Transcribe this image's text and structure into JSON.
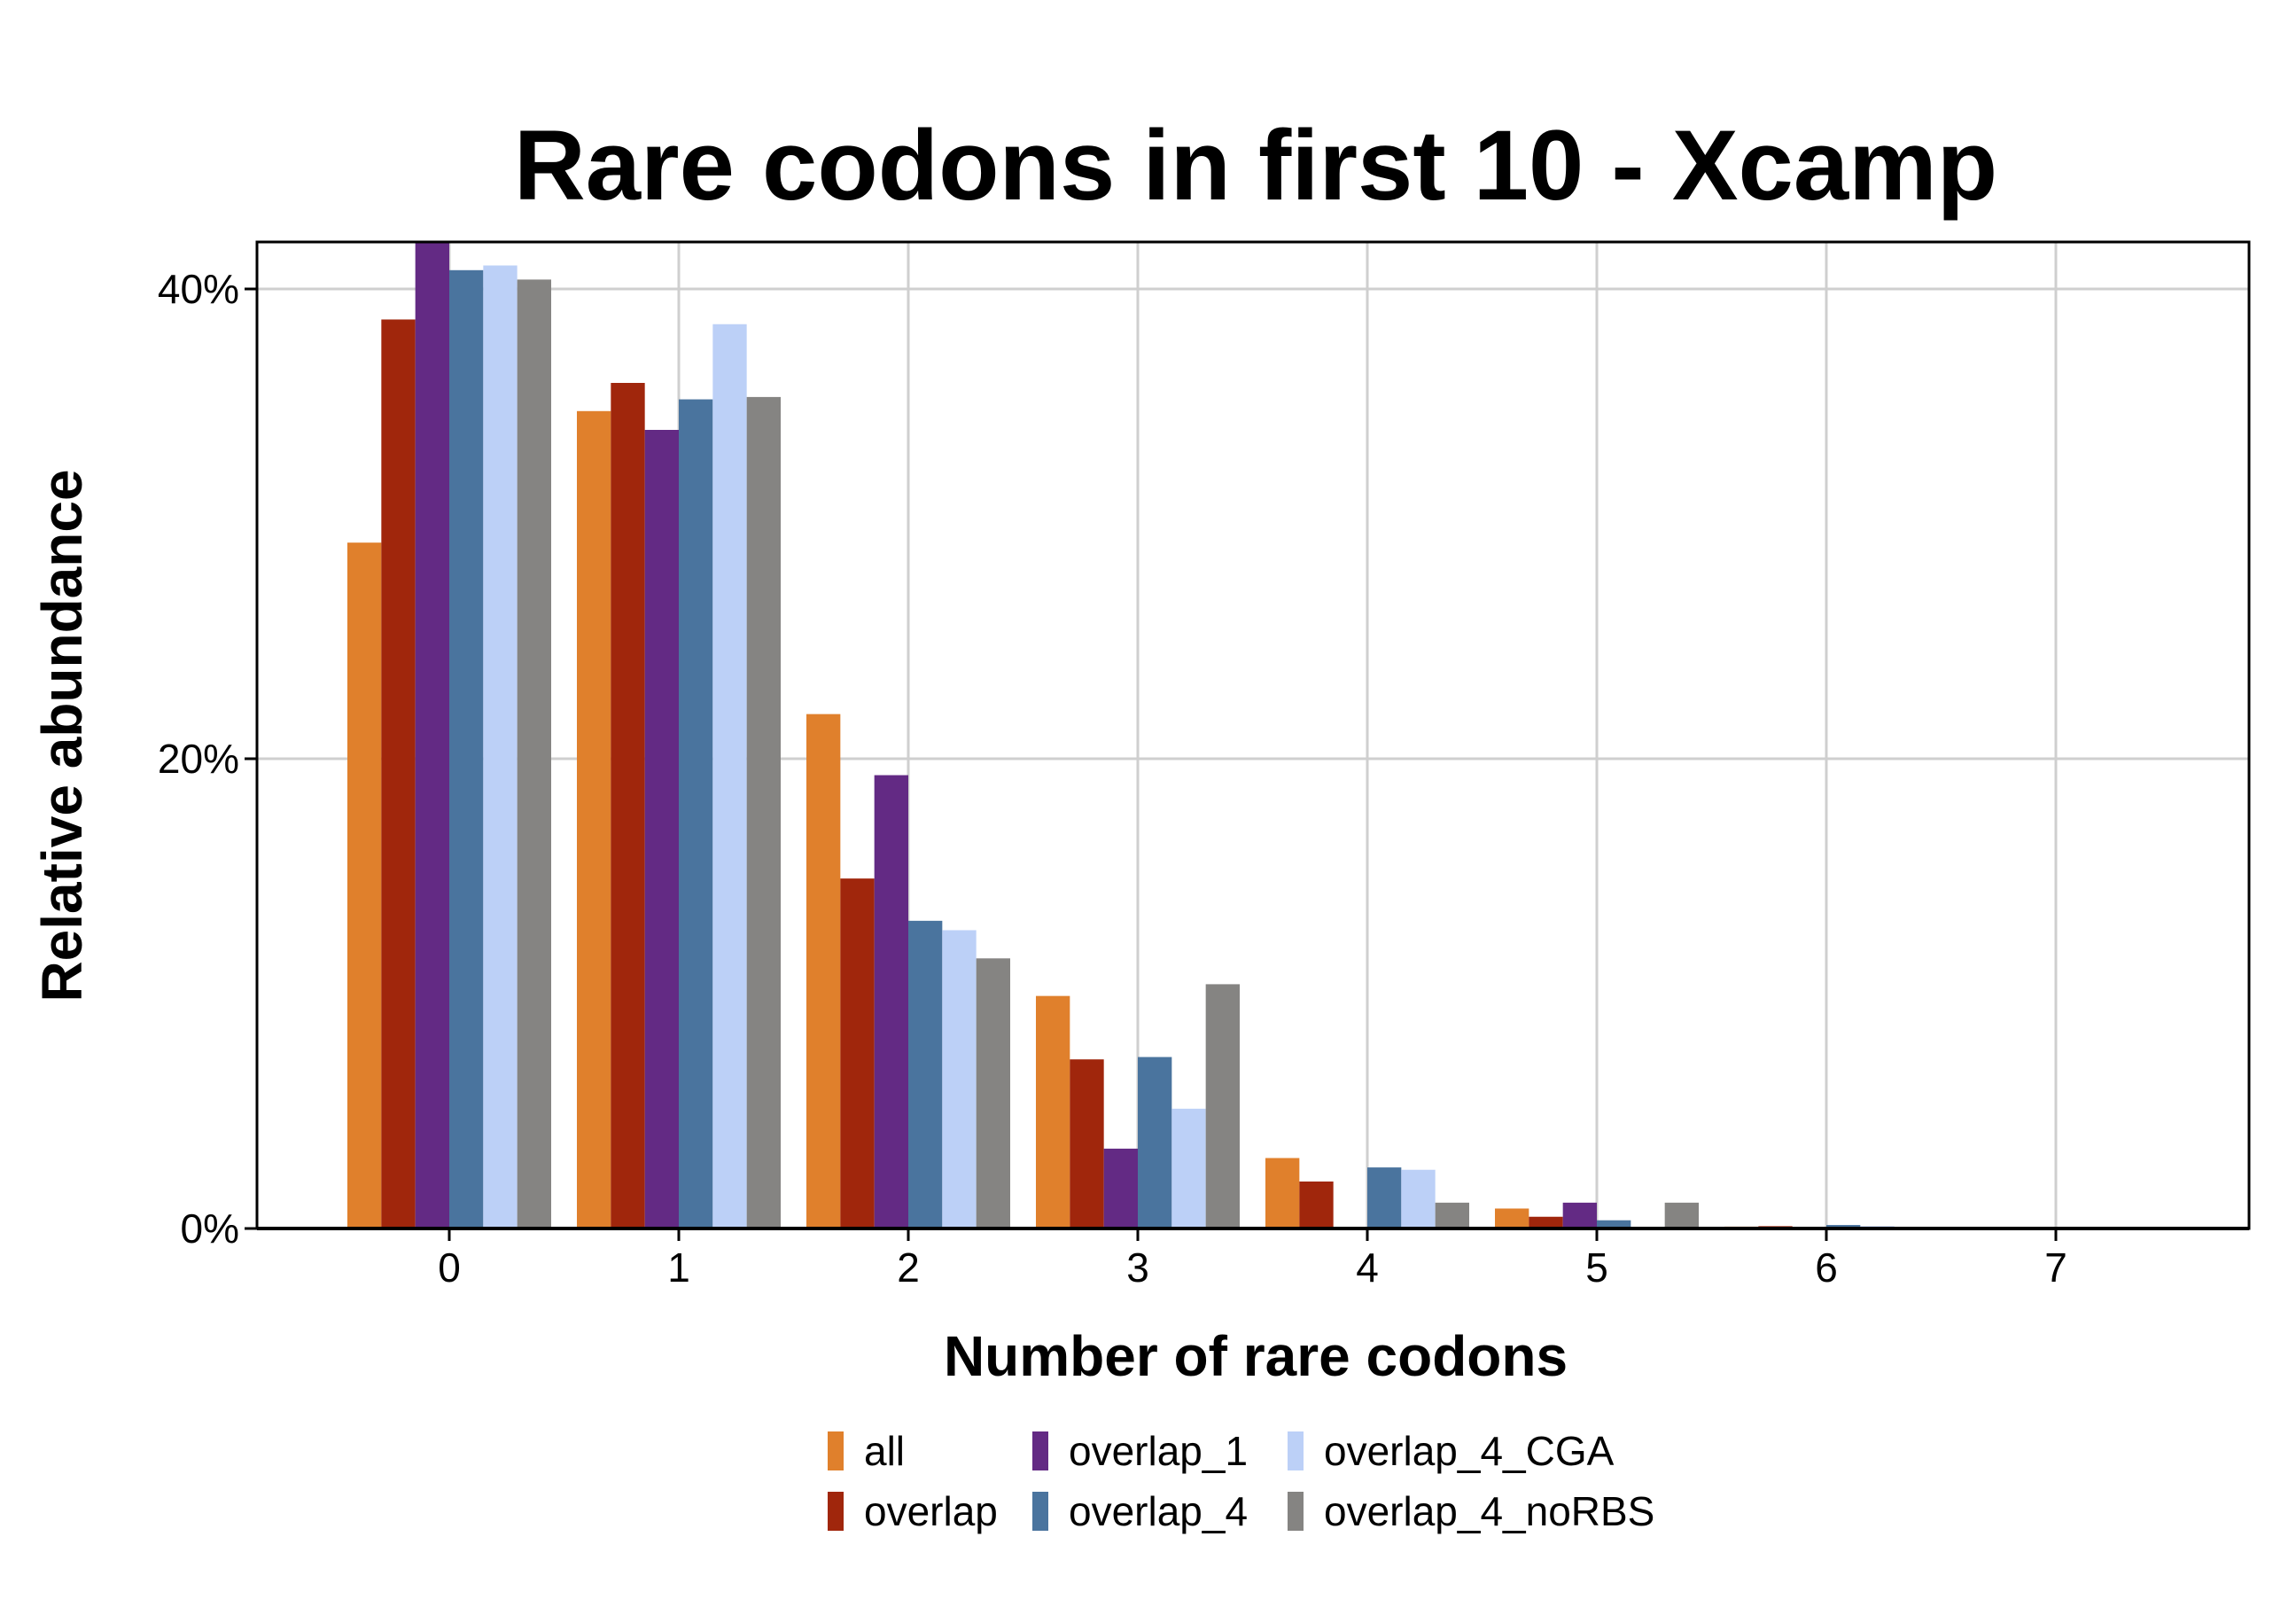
{
  "chart_data": {
    "type": "bar",
    "title": "Rare codons in first 10 - Xcamp",
    "xlabel": "Number of rare codons",
    "ylabel": "Relative abundance",
    "categories": [
      "0",
      "1",
      "2",
      "3",
      "4",
      "5",
      "6",
      "7"
    ],
    "ylim": [
      0,
      42
    ],
    "y_ticks": [
      0,
      20,
      40
    ],
    "y_tick_labels": [
      "0%",
      "20%",
      "40%"
    ],
    "grid": true,
    "legend_position": "bottom",
    "series": [
      {
        "name": "all",
        "color": "#E0802C",
        "values": [
          29.2,
          34.8,
          21.9,
          9.9,
          3.0,
          0.85,
          0.08,
          0.0
        ]
      },
      {
        "name": "overlap",
        "color": "#A0260C",
        "values": [
          38.7,
          36.0,
          14.9,
          7.2,
          2.0,
          0.5,
          0.1,
          0.0
        ]
      },
      {
        "name": "overlap_1",
        "color": "#632A84",
        "values": [
          42.5,
          34.0,
          19.3,
          3.4,
          0.0,
          1.1,
          0.0,
          0.0
        ]
      },
      {
        "name": "overlap_4",
        "color": "#4A749E",
        "values": [
          40.8,
          35.3,
          13.1,
          7.3,
          2.6,
          0.35,
          0.15,
          0.0
        ]
      },
      {
        "name": "overlap_4_CGA",
        "color": "#BCD0F7",
        "values": [
          41.0,
          38.5,
          12.7,
          5.1,
          2.5,
          0.0,
          0.1,
          0.0
        ]
      },
      {
        "name": "overlap_4_noRBS",
        "color": "#858482",
        "values": [
          40.4,
          35.4,
          11.5,
          10.4,
          1.1,
          1.1,
          0.0,
          0.0
        ]
      }
    ]
  }
}
